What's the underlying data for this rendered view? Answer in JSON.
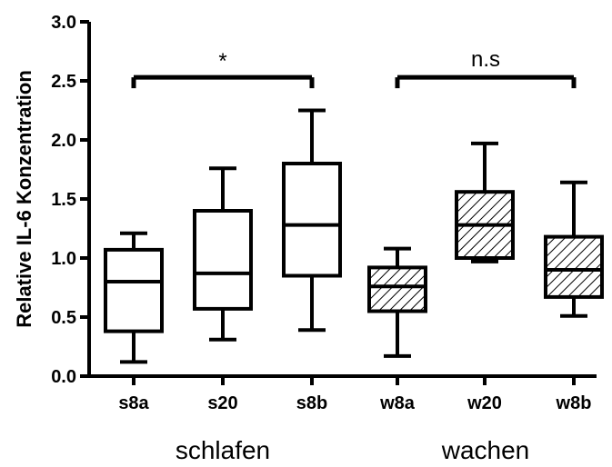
{
  "chart_data": {
    "type": "boxplot",
    "title": "",
    "ylabel": "Relative IL-6 Konzentration",
    "xlabel": "",
    "ylim": [
      0,
      3.0
    ],
    "yticks": [
      "0.0",
      "0.5",
      "1.0",
      "1.5",
      "2.0",
      "2.5",
      "3.0"
    ],
    "categories": [
      "s8a",
      "s20",
      "s8b",
      "w8a",
      "w20",
      "w8b"
    ],
    "boxes": [
      {
        "label": "s8a",
        "min": 0.12,
        "q1": 0.38,
        "median": 0.8,
        "q3": 1.07,
        "max": 1.21,
        "hatched": false
      },
      {
        "label": "s20",
        "min": 0.31,
        "q1": 0.57,
        "median": 0.87,
        "q3": 1.4,
        "max": 1.76,
        "hatched": false
      },
      {
        "label": "s8b",
        "min": 0.39,
        "q1": 0.85,
        "median": 1.28,
        "q3": 1.8,
        "max": 2.25,
        "hatched": false
      },
      {
        "label": "w8a",
        "min": 0.17,
        "q1": 0.55,
        "median": 0.76,
        "q3": 0.92,
        "max": 1.08,
        "hatched": true
      },
      {
        "label": "w20",
        "min": 0.97,
        "q1": 1.0,
        "median": 1.28,
        "q3": 1.56,
        "max": 1.97,
        "hatched": true
      },
      {
        "label": "w8b",
        "min": 0.51,
        "q1": 0.67,
        "median": 0.9,
        "q3": 1.18,
        "max": 1.64,
        "hatched": true
      }
    ],
    "groups": [
      {
        "label": "schlafen",
        "members": [
          "s8a",
          "s20",
          "s8b"
        ]
      },
      {
        "label": "wachen",
        "members": [
          "w8a",
          "w20",
          "w8b"
        ]
      }
    ],
    "significance": [
      {
        "from": "s8a",
        "to": "s8b",
        "label": "*",
        "y": 2.53
      },
      {
        "from": "w8a",
        "to": "w8b",
        "label": "n.s",
        "y": 2.53
      }
    ],
    "grid": false
  }
}
